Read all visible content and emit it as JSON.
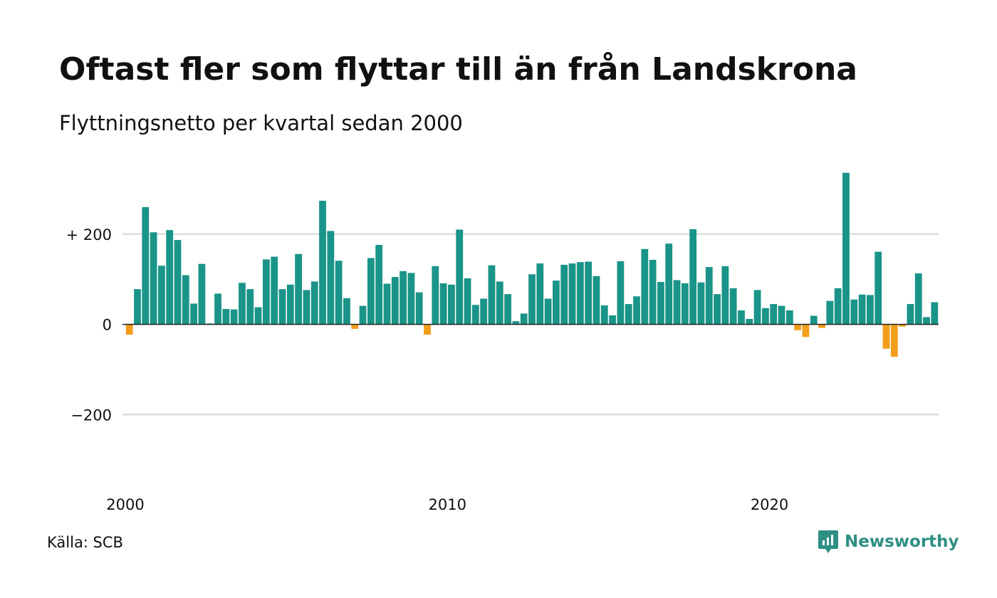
{
  "header": {
    "title": "Oftast fler som flyttar till än från Landskrona",
    "subtitle": "Flyttningsnetto per kvartal sedan 2000"
  },
  "footer": {
    "source": "Källa: SCB",
    "brand": "Newsworthy"
  },
  "colors": {
    "positive": "#1a9488",
    "negative": "#f29e1b",
    "brand": "#2e8f83",
    "grid": "#dddddd",
    "zero_line": "#222222"
  },
  "chart_data": {
    "type": "bar",
    "title": "Oftast fler som flyttar till än från Landskrona",
    "subtitle": "Flyttningsnetto per kvartal sedan 2000",
    "xlabel": "",
    "ylabel": "",
    "ylim": [
      -370,
      345
    ],
    "y_ticks": [
      {
        "value": 200,
        "label": "+ 200"
      },
      {
        "value": 0,
        "label": "0"
      },
      {
        "value": -200,
        "label": "−200"
      }
    ],
    "x_ticks": [
      {
        "index": 0,
        "label": "2000"
      },
      {
        "index": 40,
        "label": "2010"
      },
      {
        "index": 80,
        "label": "2020"
      }
    ],
    "grid": true,
    "start": "2000 Q1",
    "frequency": "quarterly",
    "values": [
      -23,
      78,
      260,
      204,
      130,
      209,
      187,
      109,
      46,
      134,
      2,
      68,
      34,
      33,
      92,
      78,
      38,
      144,
      150,
      78,
      88,
      156,
      76,
      95,
      274,
      207,
      141,
      58,
      -10,
      41,
      147,
      176,
      90,
      105,
      118,
      114,
      71,
      -23,
      129,
      91,
      88,
      210,
      102,
      43,
      57,
      131,
      95,
      67,
      7,
      24,
      111,
      135,
      57,
      97,
      132,
      135,
      138,
      139,
      107,
      42,
      20,
      140,
      45,
      62,
      167,
      143,
      94,
      179,
      98,
      91,
      211,
      93,
      127,
      67,
      129,
      80,
      31,
      12,
      76,
      36,
      45,
      41,
      31,
      -13,
      -28,
      19,
      -8,
      52,
      80,
      336,
      55,
      66,
      65,
      161,
      -54,
      -72,
      -5,
      45,
      113,
      16,
      49
    ]
  }
}
